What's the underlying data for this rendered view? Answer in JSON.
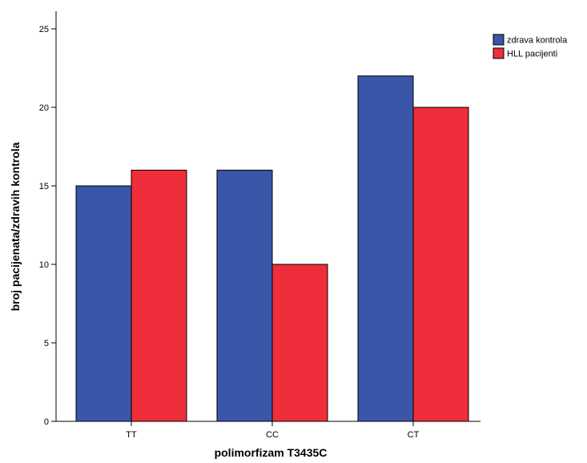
{
  "chart_data": {
    "type": "bar",
    "title": "",
    "xlabel": "polimorfizam T3435C",
    "ylabel": "broj pacijenata/zdravih kontrola",
    "categories": [
      "TT",
      "CC",
      "CT"
    ],
    "series": [
      {
        "name": "zdrava kontrola",
        "values": [
          15,
          16,
          22
        ],
        "color": "#3a56a8"
      },
      {
        "name": "HLL pacijenti",
        "values": [
          16,
          10,
          20
        ],
        "color": "#ee2e3a"
      }
    ],
    "ylim": [
      0,
      25
    ],
    "yticks": [
      0,
      5,
      10,
      15,
      20,
      25
    ],
    "grid": false,
    "legend_position": "top-right"
  }
}
